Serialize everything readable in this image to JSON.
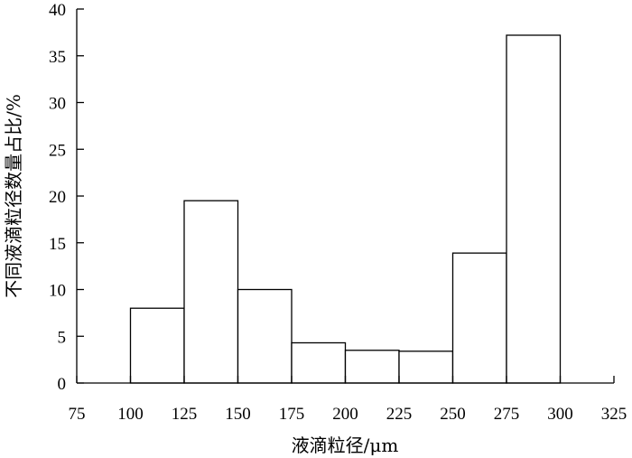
{
  "chart_data": {
    "type": "bar",
    "subtype": "histogram",
    "bins": [
      {
        "x0": 100,
        "x1": 125,
        "value": 8
      },
      {
        "x0": 125,
        "x1": 150,
        "value": 19.5
      },
      {
        "x0": 150,
        "x1": 175,
        "value": 10
      },
      {
        "x0": 175,
        "x1": 200,
        "value": 4.3
      },
      {
        "x0": 200,
        "x1": 225,
        "value": 3.5
      },
      {
        "x0": 225,
        "x1": 250,
        "value": 3.4
      },
      {
        "x0": 250,
        "x1": 275,
        "value": 13.9
      },
      {
        "x0": 275,
        "x1": 300,
        "value": 37.2
      }
    ],
    "xlabel": "液滴粒径/μm",
    "ylabel": "不同液滴粒径数量占比/%",
    "xlim": [
      75,
      325
    ],
    "ylim": [
      0,
      40
    ],
    "xticks": [
      "75",
      "100",
      "125",
      "150",
      "175",
      "200",
      "225",
      "250",
      "275",
      "300",
      "325"
    ],
    "yticks": [
      "0",
      "5",
      "10",
      "15",
      "20",
      "25",
      "30",
      "35",
      "40"
    ],
    "grid": false,
    "legend": "none",
    "bar_fill": "#ffffff",
    "bar_stroke": "#000000"
  }
}
